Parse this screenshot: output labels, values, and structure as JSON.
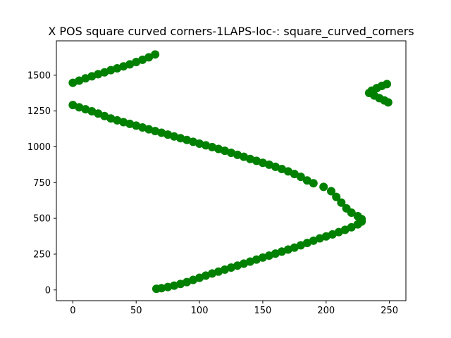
{
  "chart_data": {
    "type": "scatter",
    "title": "X POS square curved corners-1LAPS-loc-: square_curved_corners",
    "xlabel": "",
    "ylabel": "",
    "xlim": [
      -13,
      263
    ],
    "ylim": [
      -75,
      1740
    ],
    "xticks": [
      0,
      50,
      100,
      150,
      200,
      250
    ],
    "yticks": [
      0,
      250,
      500,
      750,
      1000,
      1250,
      1500
    ],
    "grid": false,
    "marker_color": "#008000",
    "series": [
      {
        "values": [
          [
            66,
            8
          ],
          [
            70,
            12
          ],
          [
            75,
            20
          ],
          [
            80,
            30
          ],
          [
            85,
            42
          ],
          [
            90,
            55
          ],
          [
            95,
            70
          ],
          [
            100,
            85
          ],
          [
            105,
            100
          ],
          [
            110,
            115
          ],
          [
            115,
            128
          ],
          [
            120,
            142
          ],
          [
            125,
            156
          ],
          [
            130,
            170
          ],
          [
            135,
            184
          ],
          [
            140,
            198
          ],
          [
            145,
            212
          ],
          [
            150,
            226
          ],
          [
            155,
            240
          ],
          [
            160,
            254
          ],
          [
            165,
            268
          ],
          [
            170,
            282
          ],
          [
            175,
            296
          ],
          [
            180,
            312
          ],
          [
            185,
            328
          ],
          [
            190,
            344
          ],
          [
            195,
            360
          ],
          [
            200,
            374
          ],
          [
            205,
            388
          ],
          [
            210,
            404
          ],
          [
            215,
            420
          ],
          [
            220,
            438
          ],
          [
            225,
            458
          ],
          [
            228,
            478
          ],
          [
            228,
            495
          ],
          [
            225,
            515
          ],
          [
            220,
            540
          ],
          [
            216,
            570
          ],
          [
            212,
            610
          ],
          [
            208,
            650
          ],
          [
            204,
            690
          ],
          [
            198,
            720
          ],
          [
            190,
            745
          ],
          [
            185,
            765
          ],
          [
            180,
            790
          ],
          [
            175,
            810
          ],
          [
            170,
            828
          ],
          [
            165,
            845
          ],
          [
            160,
            860
          ],
          [
            155,
            875
          ],
          [
            150,
            888
          ],
          [
            145,
            902
          ],
          [
            140,
            915
          ],
          [
            135,
            930
          ],
          [
            130,
            944
          ],
          [
            125,
            958
          ],
          [
            120,
            972
          ],
          [
            115,
            985
          ],
          [
            110,
            998
          ],
          [
            105,
            1010
          ],
          [
            100,
            1022
          ],
          [
            95,
            1035
          ],
          [
            90,
            1048
          ],
          [
            85,
            1060
          ],
          [
            80,
            1072
          ],
          [
            75,
            1085
          ],
          [
            70,
            1098
          ],
          [
            65,
            1110
          ],
          [
            60,
            1122
          ],
          [
            55,
            1135
          ],
          [
            50,
            1148
          ],
          [
            45,
            1160
          ],
          [
            40,
            1172
          ],
          [
            35,
            1185
          ],
          [
            30,
            1198
          ],
          [
            25,
            1215
          ],
          [
            20,
            1232
          ],
          [
            15,
            1248
          ],
          [
            10,
            1262
          ],
          [
            5,
            1276
          ],
          [
            0,
            1292
          ],
          [
            0,
            1447
          ],
          [
            5,
            1462
          ],
          [
            10,
            1478
          ],
          [
            15,
            1492
          ],
          [
            20,
            1507
          ],
          [
            25,
            1520
          ],
          [
            30,
            1535
          ],
          [
            35,
            1548
          ],
          [
            40,
            1562
          ],
          [
            45,
            1576
          ],
          [
            50,
            1592
          ],
          [
            55,
            1608
          ],
          [
            60,
            1625
          ],
          [
            65,
            1645
          ],
          [
            248,
            1438
          ],
          [
            244,
            1425
          ],
          [
            240,
            1410
          ],
          [
            236,
            1392
          ],
          [
            234,
            1376
          ],
          [
            238,
            1358
          ],
          [
            242,
            1340
          ],
          [
            246,
            1324
          ],
          [
            249,
            1310
          ]
        ]
      }
    ]
  }
}
